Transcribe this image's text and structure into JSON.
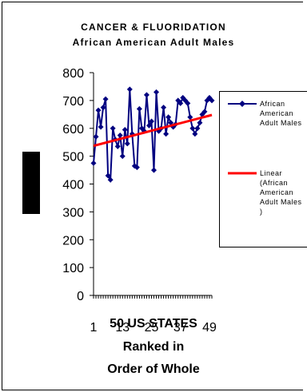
{
  "chart_data": {
    "type": "line",
    "title": "CANCER & FLUORIDATION",
    "subtitle": "African American Adult Males",
    "xlabel_lines": [
      "50 US STATES",
      "Ranked in",
      "Order of Whole"
    ],
    "ylabel": "",
    "ylim": [
      0,
      800
    ],
    "y_ticks": [
      0,
      100,
      200,
      300,
      400,
      500,
      600,
      700,
      800
    ],
    "x_tick_labels": [
      "1",
      "13",
      "25",
      "37",
      "49"
    ],
    "grid": false,
    "legend_position": "right",
    "series": [
      {
        "name": "African American Adult Males",
        "color": "#000080",
        "marker": "diamond",
        "x": [
          1,
          2,
          3,
          4,
          5,
          6,
          7,
          8,
          9,
          10,
          11,
          12,
          13,
          14,
          15,
          16,
          17,
          18,
          19,
          20,
          21,
          22,
          23,
          24,
          25,
          26,
          27,
          28,
          29,
          30,
          31,
          32,
          33,
          34,
          35,
          36,
          37,
          38,
          39,
          40,
          41,
          42,
          43,
          44,
          45,
          46,
          47,
          48,
          49,
          50
        ],
        "values": [
          475,
          570,
          665,
          605,
          675,
          705,
          430,
          415,
          600,
          560,
          535,
          575,
          500,
          595,
          545,
          740,
          580,
          465,
          460,
          670,
          600,
          590,
          720,
          610,
          625,
          450,
          730,
          590,
          600,
          675,
          580,
          640,
          620,
          605,
          615,
          700,
          690,
          710,
          700,
          690,
          640,
          600,
          580,
          600,
          620,
          650,
          660,
          700,
          710,
          700
        ]
      },
      {
        "name": "Linear (African American Adult Males)",
        "color": "#ff0000",
        "type": "trendline",
        "x": [
          1,
          50
        ],
        "values": [
          537,
          648
        ]
      }
    ],
    "legend_entries": [
      "African\nAmerican\nAdult Males",
      "Linear\n(African\nAmerican\nAdult Males\n)"
    ]
  }
}
